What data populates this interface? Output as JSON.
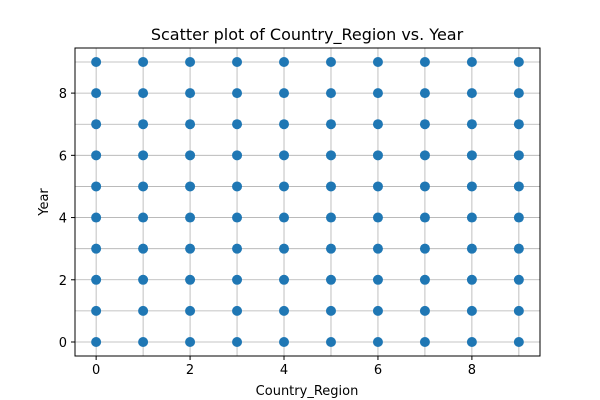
{
  "chart_data": {
    "type": "scatter",
    "title": "Scatter plot of Country_Region vs. Year",
    "xlabel": "Country_Region",
    "ylabel": "Year",
    "xlim": [
      -0.45,
      9.45
    ],
    "ylim": [
      -0.45,
      9.45
    ],
    "xticks": [
      0,
      2,
      4,
      6,
      8
    ],
    "yticks": [
      0,
      2,
      4,
      6,
      8
    ],
    "x_values": [
      0,
      1,
      2,
      3,
      4,
      5,
      6,
      7,
      8,
      9
    ],
    "y_values": [
      0,
      1,
      2,
      3,
      4,
      5,
      6,
      7,
      8,
      9
    ],
    "grid": true,
    "point_color": "#1f77b4"
  }
}
